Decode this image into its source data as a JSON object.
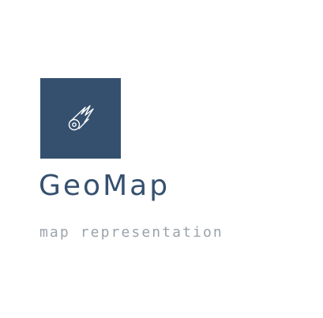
{
  "logo": {
    "icon": "comet-icon",
    "tile_color": "#35506f",
    "icon_color": "#ffffff"
  },
  "brand": {
    "name": "GeoMap",
    "tagline": "map representation",
    "name_color": "#35506f",
    "tagline_color": "#9aa2aa"
  }
}
